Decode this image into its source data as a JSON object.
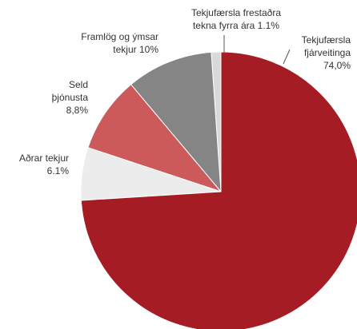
{
  "chart_data": {
    "type": "pie",
    "categories": [
      "Tekjufærsla fjárveitinga",
      "Aðrar tekjur",
      "Seld þjónusta",
      "Framlög og ýmsar tekjur",
      "Tekjufærsla frestaðra tekna fyrra ára"
    ],
    "values": [
      74.0,
      6.1,
      8.8,
      10,
      1.1
    ],
    "value_labels": [
      "74,0%",
      "6.1%",
      "8,8%",
      "10%",
      "1.1%"
    ],
    "colors": [
      "#a51c24",
      "#ececec",
      "#cd5a5a",
      "#858585",
      "#d9d9d9"
    ]
  }
}
